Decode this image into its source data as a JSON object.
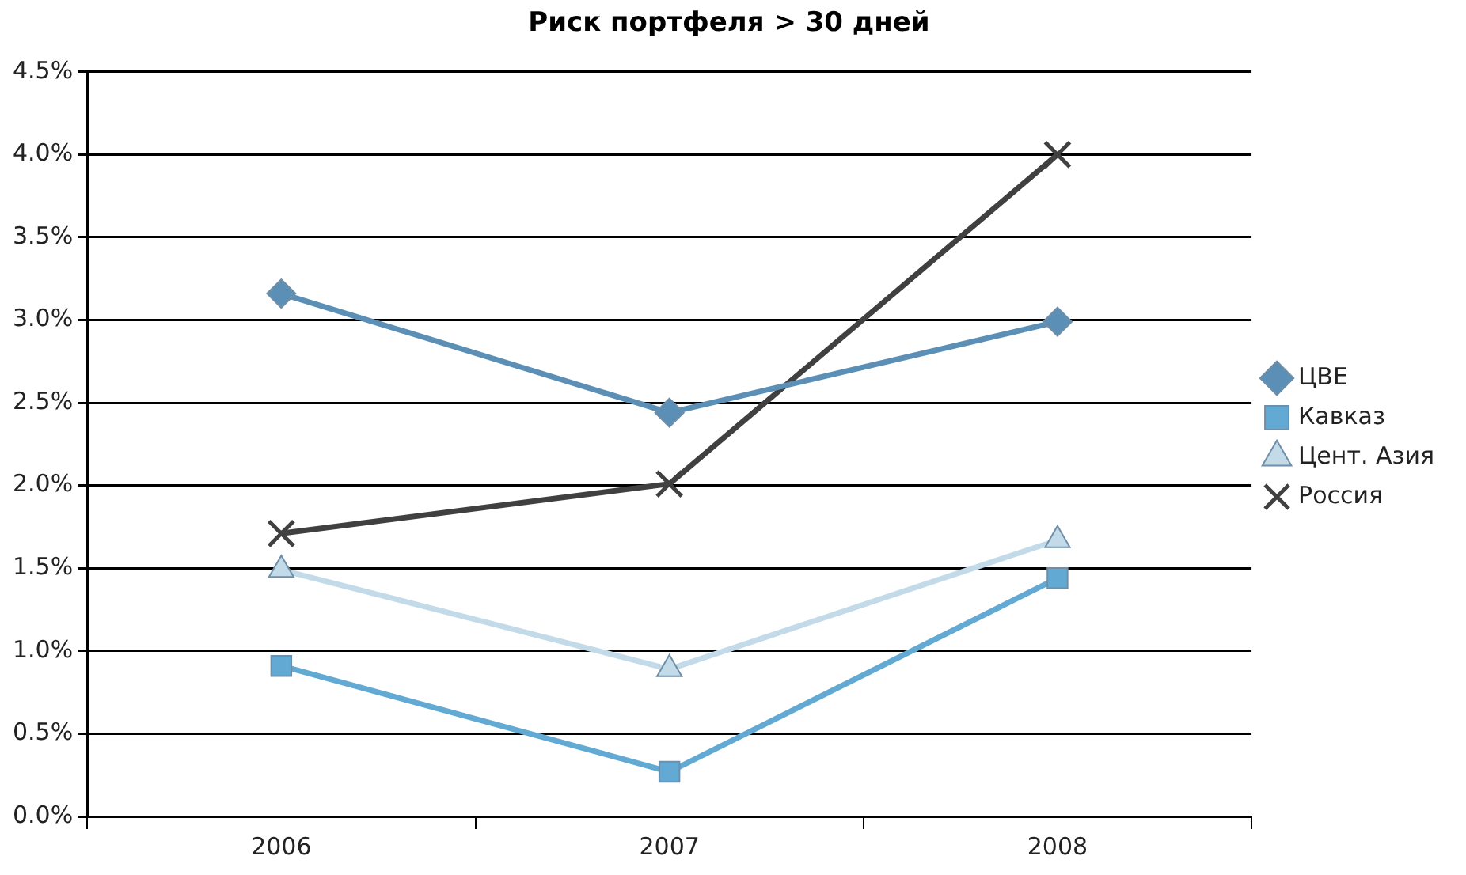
{
  "chart_data": {
    "type": "line",
    "title": "Риск портфеля > 30 дней",
    "categories": [
      "2006",
      "2007",
      "2008"
    ],
    "series": [
      {
        "name": "ЦВЕ",
        "color": "#5b8fb5",
        "marker": "diamond",
        "values": [
          3.16,
          2.44,
          2.99
        ]
      },
      {
        "name": "Кавказ",
        "color": "#62a9d4",
        "marker": "square",
        "values": [
          0.91,
          0.27,
          1.44
        ]
      },
      {
        "name": "Цент. Азия",
        "color": "#c3dbe9",
        "marker": "triangle",
        "values": [
          1.49,
          0.89,
          1.67
        ]
      },
      {
        "name": "Россия",
        "color": "#404040",
        "marker": "cross",
        "values": [
          1.71,
          2.01,
          4.0
        ]
      }
    ],
    "ylim": [
      0,
      4.5
    ],
    "yticks": [
      {
        "value": 0,
        "label": "0.0%"
      },
      {
        "value": 0.5,
        "label": "0.5%"
      },
      {
        "value": 1,
        "label": "1.0%"
      },
      {
        "value": 1.5,
        "label": "1.5%"
      },
      {
        "value": 2,
        "label": "2.0%"
      },
      {
        "value": 2.5,
        "label": "2.5%"
      },
      {
        "value": 3,
        "label": "3.0%"
      },
      {
        "value": 3.5,
        "label": "3.5%"
      },
      {
        "value": 4,
        "label": "4.0%"
      },
      {
        "value": 4.5,
        "label": "4.5%"
      }
    ],
    "grid": "y",
    "legend": "right",
    "line_style": "solid"
  }
}
